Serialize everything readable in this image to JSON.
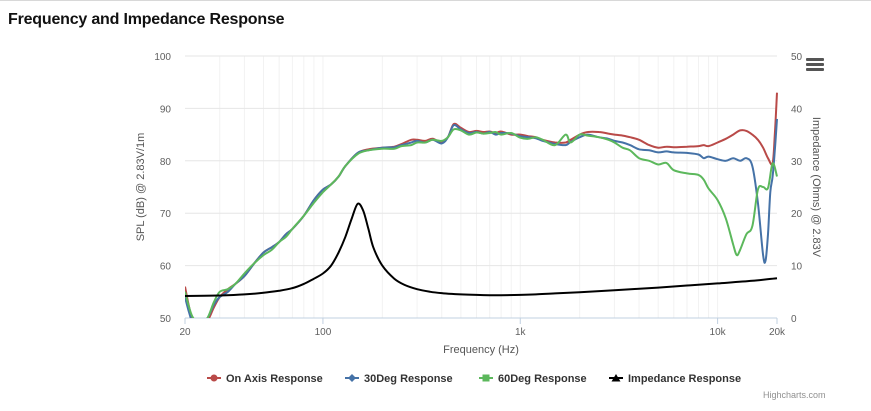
{
  "title": "Frequency and Impedance Response",
  "credits": "Highcharts.com",
  "menu_icon": "hamburger-menu-icon",
  "chart_data": {
    "type": "line",
    "title": "Frequency and Impedance Response",
    "xlabel": "Frequency (Hz)",
    "ylabel": "SPL (dB) @ 2.83V/1m",
    "y2label": "Impedance (Ohms) @ 2.83V",
    "x_scale": "log",
    "xlim": [
      20,
      20000
    ],
    "ylim": [
      50,
      100
    ],
    "y2lim": [
      0,
      50
    ],
    "x_ticks": [
      {
        "value": 20,
        "label": "20"
      },
      {
        "value": 100,
        "label": "100"
      },
      {
        "value": 1000,
        "label": "1k"
      },
      {
        "value": 10000,
        "label": "10k"
      },
      {
        "value": 20000,
        "label": "20k"
      }
    ],
    "y_ticks": [
      50,
      60,
      70,
      80,
      90,
      100
    ],
    "y2_ticks": [
      0,
      10,
      20,
      30,
      40,
      50
    ],
    "grid": true,
    "legend_position": "bottom-center",
    "series": [
      {
        "name": "On Axis Response",
        "axis": "left",
        "color": "#B94A48",
        "marker": "circle",
        "points": [
          [
            20,
            56
          ],
          [
            21,
            52
          ],
          [
            22,
            49
          ],
          [
            24,
            49
          ],
          [
            26,
            49.5
          ],
          [
            28,
            52
          ],
          [
            30,
            54
          ],
          [
            33,
            55.5
          ],
          [
            36,
            56.5
          ],
          [
            40,
            58
          ],
          [
            45,
            60.5
          ],
          [
            50,
            62.5
          ],
          [
            55,
            63.5
          ],
          [
            60,
            64.5
          ],
          [
            65,
            66
          ],
          [
            70,
            67
          ],
          [
            80,
            69.5
          ],
          [
            90,
            72.5
          ],
          [
            100,
            74.5
          ],
          [
            110,
            75.5
          ],
          [
            120,
            77
          ],
          [
            130,
            79
          ],
          [
            150,
            81.5
          ],
          [
            170,
            82.2
          ],
          [
            200,
            82.5
          ],
          [
            230,
            82.7
          ],
          [
            250,
            83.2
          ],
          [
            280,
            84
          ],
          [
            300,
            84
          ],
          [
            330,
            83.8
          ],
          [
            360,
            84.2
          ],
          [
            400,
            83.5
          ],
          [
            430,
            84.5
          ],
          [
            460,
            87
          ],
          [
            500,
            86.3
          ],
          [
            550,
            85.5
          ],
          [
            600,
            85.7
          ],
          [
            650,
            85.5
          ],
          [
            700,
            85.6
          ],
          [
            750,
            85.3
          ],
          [
            800,
            85.6
          ],
          [
            900,
            85
          ],
          [
            1000,
            85
          ],
          [
            1100,
            84.7
          ],
          [
            1200,
            84.5
          ],
          [
            1300,
            84
          ],
          [
            1500,
            83.5
          ],
          [
            1700,
            83.5
          ],
          [
            1800,
            84
          ],
          [
            2000,
            85
          ],
          [
            2200,
            85.5
          ],
          [
            2500,
            85.5
          ],
          [
            2800,
            85.2
          ],
          [
            3000,
            85
          ],
          [
            3300,
            84.8
          ],
          [
            3600,
            84.5
          ],
          [
            4000,
            84
          ],
          [
            4500,
            83
          ],
          [
            5000,
            82.5
          ],
          [
            5500,
            82.7
          ],
          [
            6000,
            82.6
          ],
          [
            7000,
            82.7
          ],
          [
            8000,
            82.8
          ],
          [
            8500,
            83
          ],
          [
            9000,
            82.8
          ],
          [
            10000,
            83.5
          ],
          [
            11000,
            84.2
          ],
          [
            12000,
            85
          ],
          [
            13000,
            85.8
          ],
          [
            14000,
            85.7
          ],
          [
            15000,
            85
          ],
          [
            16000,
            84
          ],
          [
            17000,
            82.5
          ],
          [
            18000,
            80.5
          ],
          [
            19000,
            79.5
          ],
          [
            19500,
            85
          ],
          [
            20000,
            93
          ]
        ]
      },
      {
        "name": "30Deg Response",
        "axis": "left",
        "color": "#4572A7",
        "marker": "diamond",
        "points": [
          [
            20,
            54
          ],
          [
            21,
            51
          ],
          [
            22,
            49
          ],
          [
            24,
            49
          ],
          [
            26,
            50
          ],
          [
            28,
            52.5
          ],
          [
            30,
            54
          ],
          [
            33,
            55
          ],
          [
            36,
            56.5
          ],
          [
            40,
            58
          ],
          [
            45,
            60.5
          ],
          [
            50,
            62.5
          ],
          [
            55,
            63.5
          ],
          [
            60,
            64.5
          ],
          [
            65,
            66
          ],
          [
            70,
            67
          ],
          [
            80,
            69.5
          ],
          [
            90,
            72.5
          ],
          [
            100,
            74.5
          ],
          [
            110,
            75.5
          ],
          [
            120,
            77
          ],
          [
            130,
            79
          ],
          [
            150,
            81.5
          ],
          [
            170,
            82
          ],
          [
            200,
            82.5
          ],
          [
            230,
            82.6
          ],
          [
            250,
            83
          ],
          [
            280,
            83.5
          ],
          [
            300,
            83.8
          ],
          [
            330,
            83.5
          ],
          [
            360,
            84
          ],
          [
            400,
            83.3
          ],
          [
            430,
            84.5
          ],
          [
            460,
            86.8
          ],
          [
            500,
            86
          ],
          [
            550,
            85.3
          ],
          [
            600,
            85.5
          ],
          [
            650,
            85.2
          ],
          [
            700,
            85.5
          ],
          [
            750,
            85
          ],
          [
            800,
            85.3
          ],
          [
            900,
            85.2
          ],
          [
            1000,
            84.7
          ],
          [
            1100,
            84.5
          ],
          [
            1200,
            84.3
          ],
          [
            1300,
            83.8
          ],
          [
            1500,
            83.2
          ],
          [
            1700,
            83
          ],
          [
            1800,
            83.6
          ],
          [
            2000,
            84.5
          ],
          [
            2200,
            85
          ],
          [
            2500,
            84.5
          ],
          [
            2800,
            84.2
          ],
          [
            3000,
            83.8
          ],
          [
            3300,
            83.5
          ],
          [
            3600,
            83
          ],
          [
            4000,
            82.2
          ],
          [
            4500,
            82
          ],
          [
            5000,
            81.6
          ],
          [
            5500,
            81.8
          ],
          [
            6000,
            81.6
          ],
          [
            7000,
            81.5
          ],
          [
            8000,
            81.2
          ],
          [
            8500,
            80.5
          ],
          [
            9000,
            80.8
          ],
          [
            10000,
            80.3
          ],
          [
            11000,
            80
          ],
          [
            12000,
            80.5
          ],
          [
            13000,
            80
          ],
          [
            14000,
            80.5
          ],
          [
            15000,
            79
          ],
          [
            16000,
            72
          ],
          [
            17000,
            62
          ],
          [
            17500,
            61
          ],
          [
            18000,
            66
          ],
          [
            18500,
            74
          ],
          [
            19000,
            77
          ],
          [
            19500,
            82
          ],
          [
            20000,
            88
          ]
        ]
      },
      {
        "name": "60Deg Response",
        "axis": "left",
        "color": "#5CB85C",
        "marker": "square",
        "points": [
          [
            20,
            55
          ],
          [
            21,
            52
          ],
          [
            22,
            50
          ],
          [
            24,
            49
          ],
          [
            26,
            50
          ],
          [
            28,
            53
          ],
          [
            30,
            55
          ],
          [
            33,
            55.5
          ],
          [
            36,
            56.5
          ],
          [
            40,
            58.5
          ],
          [
            45,
            60.5
          ],
          [
            50,
            62
          ],
          [
            55,
            63
          ],
          [
            60,
            64.5
          ],
          [
            65,
            65.5
          ],
          [
            70,
            67
          ],
          [
            80,
            69.5
          ],
          [
            90,
            72
          ],
          [
            100,
            74
          ],
          [
            110,
            75.5
          ],
          [
            120,
            77
          ],
          [
            130,
            79
          ],
          [
            150,
            81.3
          ],
          [
            170,
            82
          ],
          [
            200,
            82.3
          ],
          [
            230,
            82.3
          ],
          [
            250,
            82.8
          ],
          [
            280,
            83
          ],
          [
            300,
            83.5
          ],
          [
            330,
            83.5
          ],
          [
            360,
            84
          ],
          [
            400,
            83.8
          ],
          [
            430,
            84.5
          ],
          [
            460,
            86
          ],
          [
            500,
            85.8
          ],
          [
            550,
            85
          ],
          [
            600,
            85.4
          ],
          [
            650,
            85.2
          ],
          [
            700,
            85.3
          ],
          [
            750,
            85.5
          ],
          [
            800,
            85
          ],
          [
            900,
            85.3
          ],
          [
            1000,
            84.4
          ],
          [
            1100,
            84.2
          ],
          [
            1200,
            84.5
          ],
          [
            1300,
            84
          ],
          [
            1500,
            83
          ],
          [
            1700,
            85
          ],
          [
            1800,
            83.5
          ],
          [
            2000,
            85
          ],
          [
            2200,
            84.8
          ],
          [
            2500,
            84.5
          ],
          [
            2800,
            84
          ],
          [
            3000,
            83.5
          ],
          [
            3300,
            82.5
          ],
          [
            3600,
            82
          ],
          [
            4000,
            80.5
          ],
          [
            4500,
            80
          ],
          [
            5000,
            79.3
          ],
          [
            5500,
            79.6
          ],
          [
            6000,
            78.2
          ],
          [
            7000,
            77.6
          ],
          [
            8000,
            77.3
          ],
          [
            8500,
            76.4
          ],
          [
            9000,
            74.7
          ],
          [
            10000,
            72.5
          ],
          [
            11000,
            69
          ],
          [
            12000,
            64
          ],
          [
            12500,
            62
          ],
          [
            13000,
            63
          ],
          [
            14000,
            66
          ],
          [
            15000,
            67.5
          ],
          [
            16000,
            74.5
          ],
          [
            17000,
            75
          ],
          [
            18000,
            74.8
          ],
          [
            19000,
            79.5
          ],
          [
            20000,
            77
          ]
        ]
      },
      {
        "name": "Impedance Response",
        "axis": "right",
        "color": "#000000",
        "marker": "triangle",
        "points": [
          [
            20,
            4.2
          ],
          [
            30,
            4.3
          ],
          [
            40,
            4.5
          ],
          [
            50,
            4.8
          ],
          [
            60,
            5.2
          ],
          [
            70,
            5.7
          ],
          [
            80,
            6.5
          ],
          [
            90,
            7.5
          ],
          [
            100,
            8.5
          ],
          [
            110,
            10
          ],
          [
            120,
            12.5
          ],
          [
            130,
            15.5
          ],
          [
            140,
            19
          ],
          [
            150,
            21.8
          ],
          [
            160,
            20.5
          ],
          [
            170,
            17
          ],
          [
            180,
            13.5
          ],
          [
            200,
            10
          ],
          [
            230,
            7.5
          ],
          [
            260,
            6.3
          ],
          [
            300,
            5.5
          ],
          [
            350,
            5
          ],
          [
            400,
            4.75
          ],
          [
            450,
            4.6
          ],
          [
            500,
            4.5
          ],
          [
            600,
            4.4
          ],
          [
            700,
            4.35
          ],
          [
            800,
            4.35
          ],
          [
            1000,
            4.4
          ],
          [
            1200,
            4.5
          ],
          [
            1500,
            4.7
          ],
          [
            2000,
            4.9
          ],
          [
            3000,
            5.3
          ],
          [
            5000,
            5.8
          ],
          [
            7000,
            6.2
          ],
          [
            10000,
            6.6
          ],
          [
            15000,
            7.1
          ],
          [
            20000,
            7.6
          ]
        ]
      }
    ]
  }
}
